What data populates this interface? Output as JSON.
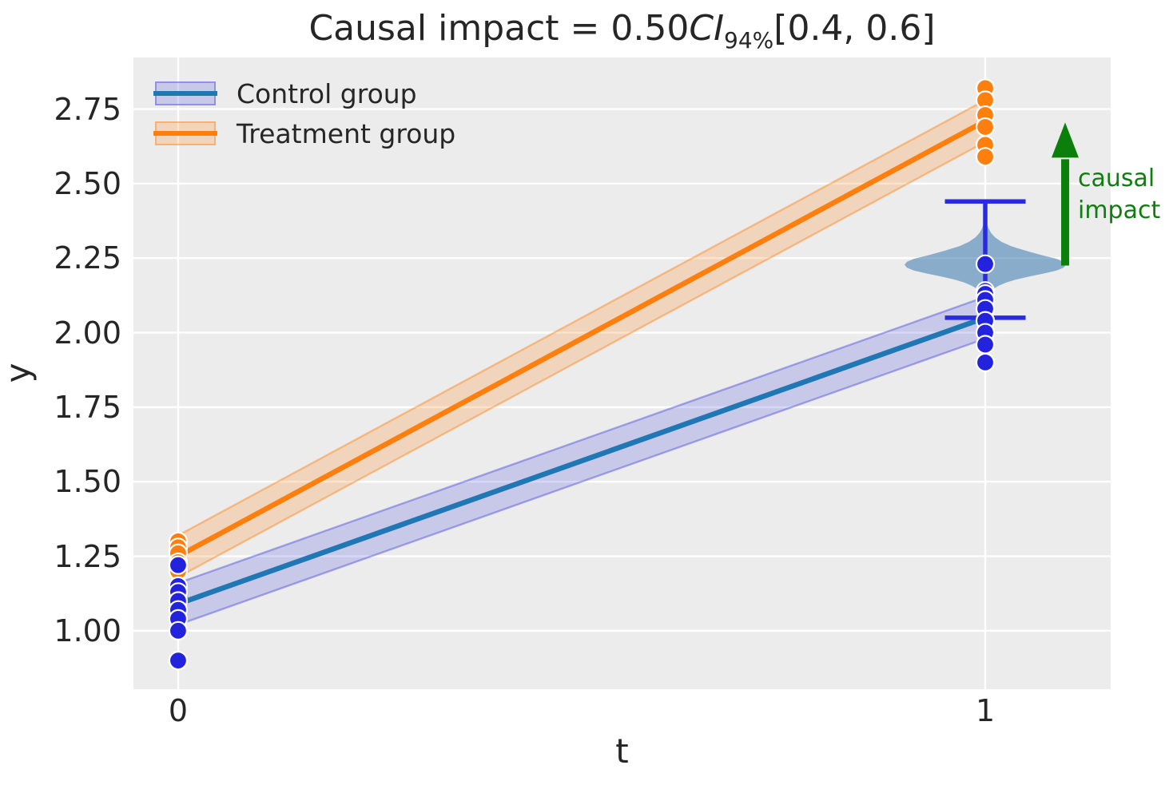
{
  "chart_data": {
    "type": "scatter",
    "subtype": "line-fit-with-bands-violin-and-errorbar",
    "title": {
      "full": "Causal impact = 0.50CI94%[0.4, 0.6]",
      "prefix": "Causal impact = 0.50",
      "ci": "CI",
      "ci_sub": "94%",
      "suffix": "[0.4, 0.6]"
    },
    "xlabel": "t",
    "ylabel": "y",
    "xlim": [
      -0.0554,
      1.1554
    ],
    "ylim": [
      0.804,
      2.923
    ],
    "grid": true,
    "plot_bg": "#ececec",
    "grid_color": "#ffffff",
    "text_color": "#262626",
    "xticks": [
      {
        "label": "0",
        "value": 0
      },
      {
        "label": "1",
        "value": 1
      }
    ],
    "yticks": [
      {
        "label": "2.75",
        "value": 2.75
      },
      {
        "label": "2.50",
        "value": 2.5
      },
      {
        "label": "2.25",
        "value": 2.25
      },
      {
        "label": "2.00",
        "value": 2.0
      },
      {
        "label": "1.75",
        "value": 1.75
      },
      {
        "label": "1.50",
        "value": 1.5
      },
      {
        "label": "1.25",
        "value": 1.25
      },
      {
        "label": "1.00",
        "value": 1.0
      }
    ],
    "legend_position": "upper-left",
    "series": [
      {
        "name": "Control group",
        "line_x": [
          0,
          1
        ],
        "line_y": [
          1.09,
          2.05
        ],
        "band_halfwidth": 0.07,
        "line_color": "#1f77b4",
        "band_fill": "rgba(75,75,225,0.22)",
        "band_edge": "rgba(75,75,225,0.45)",
        "scatter_color": "#2323dd",
        "scatter_t0": [
          1.22,
          1.15,
          1.13,
          1.1,
          1.07,
          1.04,
          1.0,
          0.9
        ],
        "scatter_t1": [
          2.23,
          2.14,
          2.13,
          2.11,
          2.08,
          2.04,
          2.0,
          1.96,
          1.9
        ]
      },
      {
        "name": "Treatment group",
        "line_x": [
          0,
          1
        ],
        "line_y": [
          1.25,
          2.71
        ],
        "band_halfwidth": 0.07,
        "line_color": "#ff7f0e",
        "band_fill": "rgba(255,127,14,0.22)",
        "band_edge": "rgba(255,127,14,0.42)",
        "scatter_color": "#fd7f0e",
        "scatter_t0": [
          1.3,
          1.28,
          1.26,
          1.23,
          1.2
        ],
        "scatter_t1": [
          2.82,
          2.78,
          2.73,
          2.69,
          2.63,
          2.59
        ]
      }
    ],
    "violin": {
      "x": 1,
      "fill": "rgba(70,130,180,0.60)",
      "center": 2.228,
      "profile": [
        [
          2.365,
          0.002
        ],
        [
          2.35,
          0.004
        ],
        [
          2.335,
          0.007
        ],
        [
          2.32,
          0.012
        ],
        [
          2.305,
          0.02
        ],
        [
          2.29,
          0.032
        ],
        [
          2.275,
          0.05
        ],
        [
          2.26,
          0.07
        ],
        [
          2.248,
          0.088
        ],
        [
          2.238,
          0.097
        ],
        [
          2.228,
          0.1
        ],
        [
          2.218,
          0.097
        ],
        [
          2.208,
          0.088
        ],
        [
          2.198,
          0.072
        ],
        [
          2.188,
          0.054
        ],
        [
          2.178,
          0.038
        ],
        [
          2.168,
          0.026
        ],
        [
          2.158,
          0.017
        ],
        [
          2.148,
          0.011
        ],
        [
          2.138,
          0.007
        ],
        [
          2.128,
          0.005
        ],
        [
          2.118,
          0.003
        ],
        [
          2.1,
          0.002
        ]
      ]
    },
    "errorbar": {
      "x": 1,
      "low": 2.05,
      "high": 2.44,
      "cap_halfwidth": 0.05,
      "color": "#2a2ae0"
    },
    "arrow": {
      "x": 1.099,
      "y_start": 2.225,
      "y_end": 2.705,
      "color": "#0a800a",
      "label_lines": [
        "causal",
        "impact"
      ],
      "label_color": "#0f7d0f"
    }
  }
}
